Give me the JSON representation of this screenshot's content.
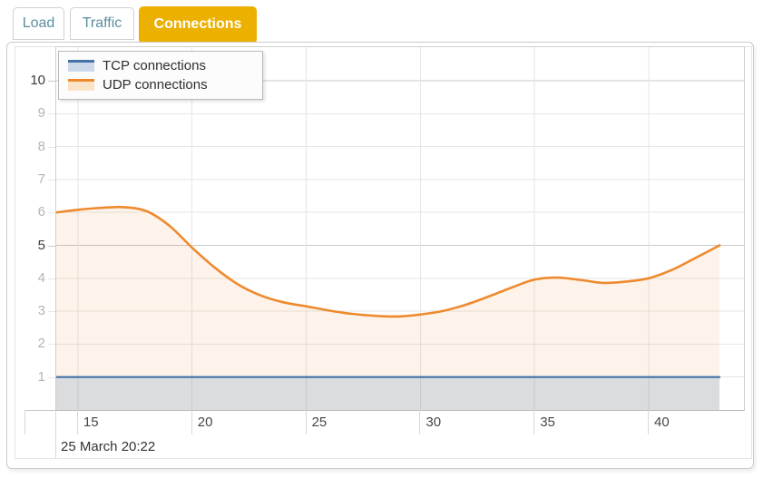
{
  "tabs": [
    {
      "label": "Load",
      "active": false
    },
    {
      "label": "Traffic",
      "active": false
    },
    {
      "label": "Connections",
      "active": true
    }
  ],
  "tab_colors": {
    "active_bg": "#ecb100",
    "active_text": "#ffffff",
    "inactive_text": "#5b8e9f"
  },
  "chart_data": {
    "type": "area",
    "title": "",
    "xlabel": "",
    "ylabel": "",
    "date_label": "25 March 20:22",
    "x_unit": "minutes past 20:00",
    "xlim": [
      14.05,
      44.17
    ],
    "ylim": [
      0,
      11.02
    ],
    "xticks": [
      15,
      20,
      25,
      30,
      35,
      40
    ],
    "yticks": [
      1,
      2,
      3,
      4,
      5,
      6,
      7,
      8,
      9,
      10
    ],
    "grid": true,
    "legend_position": "top-left",
    "colors": {
      "grid_minor": "#e6e6e6",
      "grid_major": "#c9c9c9",
      "tick_line": "#d8d8d8",
      "y_label_minor": "#b5b5b5",
      "y_label_major": "#3c3c3c",
      "x_label": "#464646"
    },
    "series": [
      {
        "name": "TCP connections",
        "color": "#4572a7",
        "fill": "rgba(69,114,167,0.18)",
        "legend_fill": "#ccd9eb",
        "width": 2.2,
        "points": [
          [
            14.05,
            1
          ],
          [
            43.1,
            1
          ]
        ]
      },
      {
        "name": "UDP connections",
        "color": "#ee8a2e",
        "fill": "rgba(238,138,46,0.10)",
        "legend_fill": "#fbe3c8",
        "width": 2.6,
        "points": [
          [
            14.05,
            6.0
          ],
          [
            15,
            6.08
          ],
          [
            16,
            6.14
          ],
          [
            17,
            6.16
          ],
          [
            18,
            6.04
          ],
          [
            19,
            5.6
          ],
          [
            20,
            4.93
          ],
          [
            21,
            4.32
          ],
          [
            22,
            3.82
          ],
          [
            23,
            3.48
          ],
          [
            24,
            3.27
          ],
          [
            25,
            3.15
          ],
          [
            26,
            3.02
          ],
          [
            27,
            2.92
          ],
          [
            28,
            2.86
          ],
          [
            29,
            2.84
          ],
          [
            30,
            2.9
          ],
          [
            31,
            3.01
          ],
          [
            32,
            3.2
          ],
          [
            33,
            3.45
          ],
          [
            34,
            3.72
          ],
          [
            35,
            3.96
          ],
          [
            36,
            4.02
          ],
          [
            37,
            3.95
          ],
          [
            38,
            3.86
          ],
          [
            39,
            3.9
          ],
          [
            40,
            4.0
          ],
          [
            41,
            4.25
          ],
          [
            42,
            4.6
          ],
          [
            43.1,
            5.0
          ]
        ]
      }
    ]
  }
}
